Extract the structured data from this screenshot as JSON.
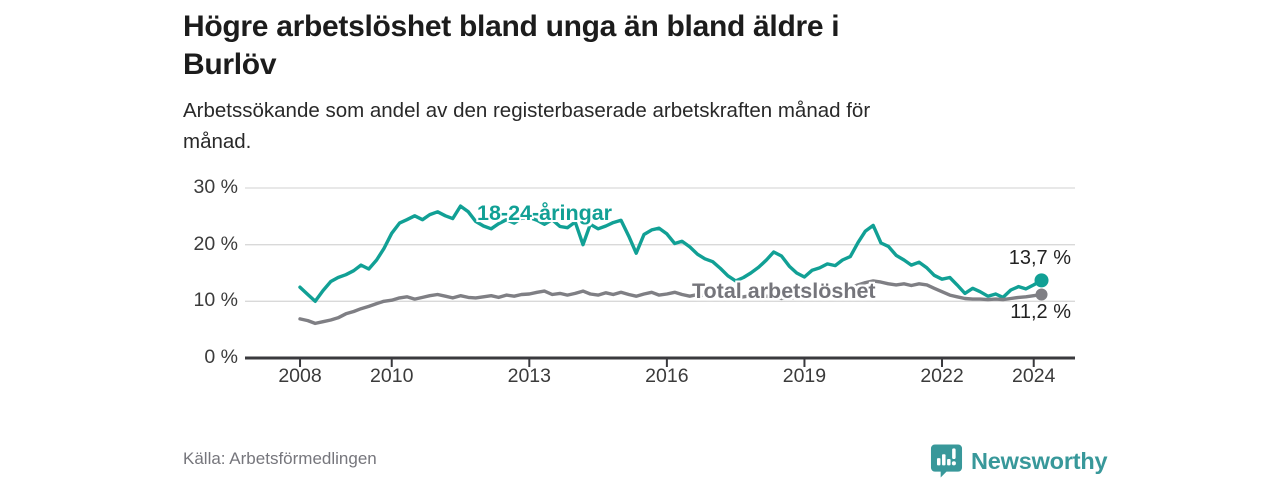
{
  "header": {
    "title_lines": [
      "Högre arbetslöshet bland unga än bland äldre i",
      "Burlöv"
    ],
    "subtitle_lines": [
      "Arbetssökande som andel av den registerbaserade arbetskraften månad för",
      "månad."
    ]
  },
  "colors": {
    "accent_teal": "#11a095",
    "line_gray": "#7f7f84",
    "label_gray": "#75757b",
    "grid": "#d9d9d9",
    "axis": "#3a3a3e",
    "text_dark": "#222222",
    "brand_teal": "#38989a"
  },
  "chart_data": {
    "type": "line",
    "title": "Högre arbetslöshet bland unga än bland äldre i Burlöv",
    "subtitle": "Arbetssökande som andel av den registerbaserade arbetskraften månad för månad.",
    "unit": "%",
    "grid": "horizontal",
    "legend_position": "inline-labels",
    "ylim": [
      0,
      30
    ],
    "xlim": [
      2006.8,
      2024.9
    ],
    "yticks": [
      {
        "value": 30,
        "label": "30 %"
      },
      {
        "value": 20,
        "label": "20 %"
      },
      {
        "value": 10,
        "label": "10 %"
      },
      {
        "value": 0,
        "label": "0 %"
      }
    ],
    "xticks": [
      {
        "value": 2008,
        "label": "2008"
      },
      {
        "value": 2010,
        "label": "2010"
      },
      {
        "value": 2013,
        "label": "2013"
      },
      {
        "value": 2016,
        "label": "2016"
      },
      {
        "value": 2019,
        "label": "2019"
      },
      {
        "value": 2022,
        "label": "2022"
      },
      {
        "value": 2024,
        "label": "2024"
      }
    ],
    "x": [
      2008,
      2008.17,
      2008.33,
      2008.5,
      2008.67,
      2008.83,
      2009,
      2009.17,
      2009.33,
      2009.5,
      2009.67,
      2009.83,
      2010,
      2010.17,
      2010.33,
      2010.5,
      2010.67,
      2010.83,
      2011,
      2011.17,
      2011.33,
      2011.5,
      2011.67,
      2011.83,
      2012,
      2012.17,
      2012.33,
      2012.5,
      2012.67,
      2012.83,
      2013,
      2013.17,
      2013.33,
      2013.5,
      2013.67,
      2013.83,
      2014,
      2014.17,
      2014.33,
      2014.5,
      2014.67,
      2014.83,
      2015,
      2015.17,
      2015.33,
      2015.5,
      2015.67,
      2015.83,
      2016,
      2016.17,
      2016.33,
      2016.5,
      2016.67,
      2016.83,
      2017,
      2017.17,
      2017.33,
      2017.5,
      2017.67,
      2017.83,
      2018,
      2018.17,
      2018.33,
      2018.5,
      2018.67,
      2018.83,
      2019,
      2019.17,
      2019.33,
      2019.5,
      2019.67,
      2019.83,
      2020,
      2020.17,
      2020.33,
      2020.5,
      2020.67,
      2020.83,
      2021,
      2021.17,
      2021.33,
      2021.5,
      2021.67,
      2021.83,
      2022,
      2022.17,
      2022.33,
      2022.5,
      2022.67,
      2022.83,
      2023,
      2023.17,
      2023.33,
      2023.5,
      2023.67,
      2023.83,
      2024,
      2024.17
    ],
    "series": [
      {
        "name": "18-24-åringar",
        "color": "#11a095",
        "end_label": "13,7 %",
        "end_value": 13.7,
        "values": [
          12.5,
          11.2,
          10.0,
          11.9,
          13.5,
          14.2,
          14.7,
          15.4,
          16.4,
          15.7,
          17.3,
          19.3,
          22.0,
          23.8,
          24.4,
          25.1,
          24.4,
          25.3,
          25.8,
          25.1,
          24.6,
          26.8,
          25.8,
          24.1,
          23.3,
          22.8,
          23.7,
          24.4,
          23.8,
          24.7,
          24.8,
          24.3,
          23.6,
          24.4,
          23.2,
          23.0,
          24.0,
          20.0,
          23.6,
          22.8,
          23.3,
          23.9,
          24.3,
          21.5,
          18.5,
          21.8,
          22.6,
          22.9,
          21.9,
          20.2,
          20.6,
          19.6,
          18.3,
          17.5,
          17.0,
          15.8,
          14.5,
          13.6,
          14.2,
          15.0,
          16.0,
          17.3,
          18.7,
          18.0,
          16.2,
          15.0,
          14.3,
          15.5,
          15.9,
          16.6,
          16.3,
          17.3,
          17.9,
          20.4,
          22.4,
          23.4,
          20.3,
          19.7,
          18.1,
          17.3,
          16.4,
          16.9,
          15.9,
          14.6,
          13.9,
          14.2,
          12.9,
          11.4,
          12.3,
          11.7,
          10.9,
          11.3,
          10.7,
          12.0,
          12.6,
          12.2,
          12.9,
          13.7
        ]
      },
      {
        "name": "Total arbetslöshet",
        "color": "#7f7f84",
        "end_label": "11,2 %",
        "end_value": 11.2,
        "values": [
          6.9,
          6.6,
          6.1,
          6.4,
          6.7,
          7.1,
          7.8,
          8.2,
          8.7,
          9.1,
          9.6,
          10.0,
          10.2,
          10.6,
          10.8,
          10.4,
          10.7,
          11.0,
          11.2,
          10.9,
          10.6,
          11.0,
          10.7,
          10.6,
          10.8,
          11.0,
          10.7,
          11.1,
          10.9,
          11.2,
          11.3,
          11.6,
          11.8,
          11.2,
          11.4,
          11.1,
          11.4,
          11.8,
          11.3,
          11.1,
          11.5,
          11.2,
          11.6,
          11.2,
          10.9,
          11.3,
          11.6,
          11.1,
          11.3,
          11.6,
          11.2,
          10.9,
          11.2,
          11.0,
          10.9,
          10.8,
          10.9,
          10.7,
          10.8,
          11.0,
          10.8,
          10.9,
          10.7,
          10.5,
          10.7,
          10.6,
          10.8,
          10.9,
          11.1,
          11.3,
          11.6,
          12.0,
          12.4,
          12.9,
          13.3,
          13.6,
          13.4,
          13.1,
          12.9,
          13.1,
          12.8,
          13.1,
          12.9,
          12.3,
          11.7,
          11.1,
          10.8,
          10.5,
          10.4,
          10.4,
          10.3,
          10.4,
          10.3,
          10.5,
          10.7,
          10.8,
          11.0,
          11.2
        ]
      }
    ]
  },
  "footer": {
    "source": "Källa: Arbetsförmedlingen",
    "brand": "Newsworthy"
  }
}
